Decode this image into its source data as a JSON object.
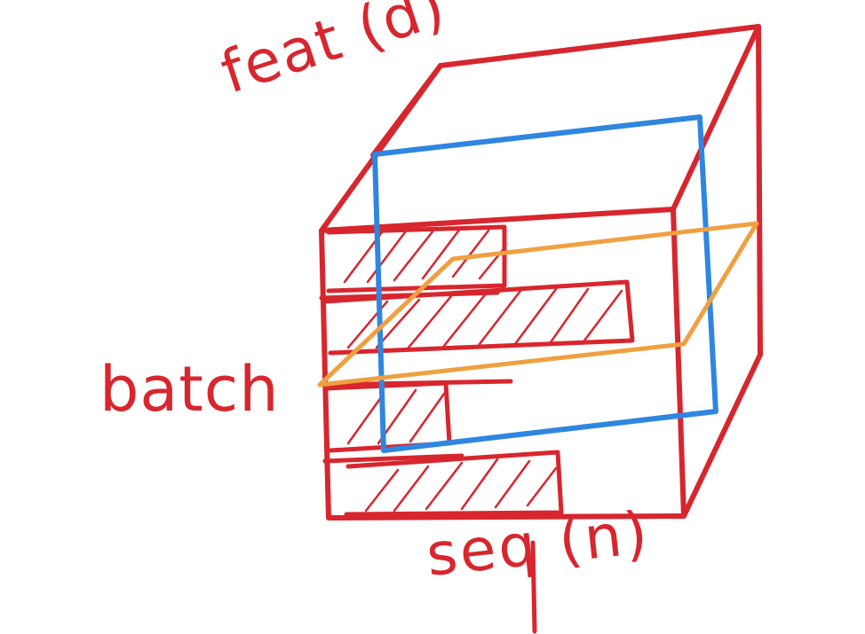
{
  "labels": {
    "feature_axis": "feat (d)",
    "batch_axis": "batch",
    "sequence_axis": "seq (n)"
  },
  "colors": {
    "outer_tensor": "#d8262e",
    "feature_slice": "#2f86e0",
    "batch_slice": "#f0a040",
    "hatching": "#d8262e",
    "background": "#ffffff"
  },
  "batch_rows": 4
}
